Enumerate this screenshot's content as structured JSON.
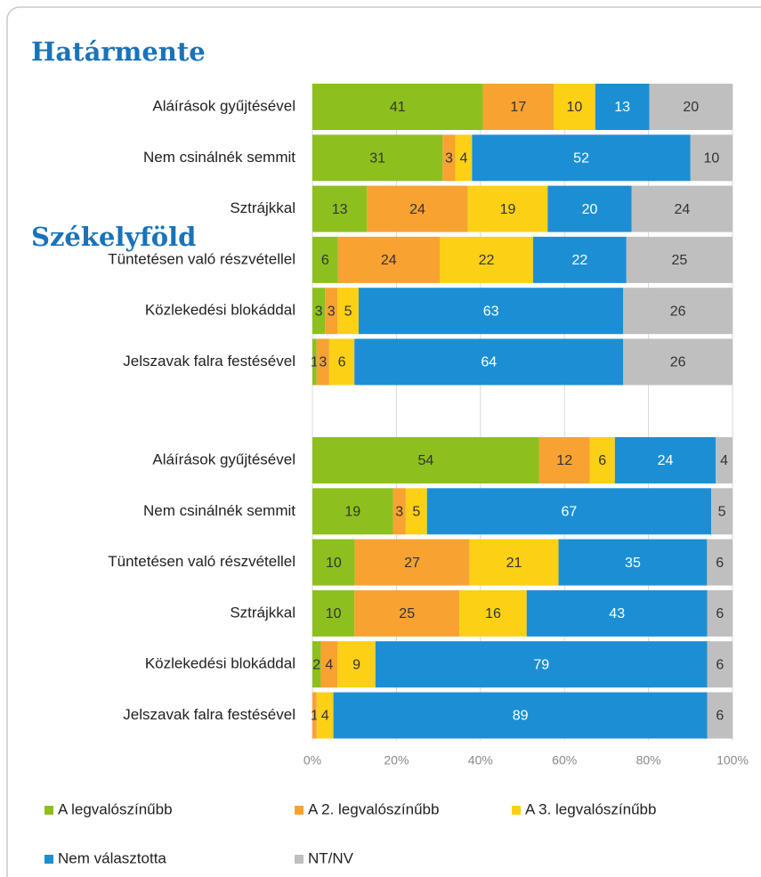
{
  "chart_data": [
    {
      "type": "bar",
      "orientation": "horizontal",
      "stacked": "percent",
      "title": "Határmente",
      "categories": [
        "Aláírások gyűjtésével",
        "Nem csinálnék semmit",
        "Sztrájkkal",
        "Tüntetésen való részvétellel",
        "Közlekedési blokáddal",
        "Jelszavak falra festésével"
      ],
      "series": [
        {
          "color": "#8dbf1f",
          "values": [
            41,
            31,
            13,
            6,
            3,
            1
          ]
        },
        {
          "color": "#f8a232",
          "values": [
            17,
            3,
            24,
            24,
            3,
            3
          ]
        },
        {
          "color": "#fcd014",
          "values": [
            10,
            4,
            19,
            22,
            5,
            6
          ]
        },
        {
          "color": "#1c8fd4",
          "values": [
            13,
            52,
            20,
            22,
            63,
            64
          ]
        },
        {
          "color": "#bfbfbf",
          "values": [
            20,
            10,
            24,
            25,
            26,
            26
          ]
        }
      ],
      "xlim": [
        0,
        100
      ]
    },
    {
      "type": "bar",
      "orientation": "horizontal",
      "stacked": "percent",
      "title": "Székelyföld",
      "categories": [
        "Aláírások gyűjtésével",
        "Nem csinálnék semmit",
        "Tüntetésen való részvétellel",
        "Sztrájkkal",
        "Közlekedési blokáddal",
        "Jelszavak falra festésével"
      ],
      "series": [
        {
          "name": "A legvalószínűbb",
          "color": "#8dbf1f",
          "values": [
            54,
            19,
            10,
            10,
            2,
            0
          ]
        },
        {
          "name": "A 2. legvalószínűbb",
          "color": "#f8a232",
          "values": [
            12,
            3,
            27,
            25,
            4,
            1
          ]
        },
        {
          "name": "A 3. legvalószínűbb",
          "color": "#fcd014",
          "values": [
            6,
            5,
            21,
            16,
            9,
            4
          ]
        },
        {
          "name": "Nem választotta",
          "color": "#1c8fd4",
          "values": [
            24,
            67,
            35,
            43,
            79,
            89
          ]
        },
        {
          "name": "NT/NV",
          "color": "#bfbfbf",
          "values": [
            4,
            5,
            6,
            6,
            6,
            6
          ]
        }
      ],
      "xlim": [
        0,
        100
      ],
      "xticks": [
        {
          "value": 0,
          "label": "0%"
        },
        {
          "value": 20,
          "label": "20%"
        },
        {
          "value": 40,
          "label": "40%"
        },
        {
          "value": 60,
          "label": "60%"
        },
        {
          "value": 80,
          "label": "80%"
        },
        {
          "value": 100,
          "label": "100%"
        }
      ],
      "grid": true,
      "legend": "bottom"
    }
  ]
}
